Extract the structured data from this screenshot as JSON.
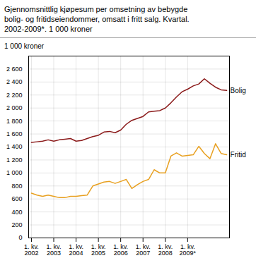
{
  "chart_data": {
    "type": "line",
    "title": "Gjennomsnittlig kjøpesum per omsetning av bebygde\nbolig- og fritidseiendommer, omsatt i fritt salg. Kvartal.\n2002-2009*. 1 000 kroner",
    "y_label": "1 000 kroner",
    "categories": [
      "1. kv.\n2002",
      null,
      null,
      null,
      "1. kv.\n2003",
      null,
      null,
      null,
      "1. kv.\n2004",
      null,
      null,
      null,
      "1. kv.\n2005",
      null,
      null,
      null,
      "1. kv.\n2006",
      null,
      null,
      null,
      "1. kv.\n2007",
      null,
      null,
      null,
      "1. kv.\n2008",
      null,
      null,
      null,
      "1. kv.\n2009*",
      null,
      null,
      null,
      null,
      null,
      null,
      null
    ],
    "series": [
      {
        "name": "Bolig",
        "color": "#8B1A1A",
        "values": [
          1470,
          1480,
          1490,
          1510,
          1490,
          1510,
          1520,
          1530,
          1490,
          1500,
          1530,
          1560,
          1580,
          1630,
          1640,
          1620,
          1660,
          1750,
          1810,
          1840,
          1870,
          1940,
          1950,
          1960,
          2000,
          2080,
          2170,
          2250,
          2290,
          2340,
          2370,
          2450,
          2380,
          2320,
          2280,
          2270
        ]
      },
      {
        "name": "Fritid",
        "color": "#E8A020",
        "values": [
          690,
          660,
          640,
          660,
          640,
          620,
          620,
          640,
          640,
          650,
          660,
          800,
          830,
          860,
          870,
          840,
          870,
          900,
          760,
          820,
          870,
          900,
          1050,
          1000,
          1000,
          1260,
          1310,
          1260,
          1270,
          1280,
          1410,
          1300,
          1220,
          1450,
          1300,
          1280
        ]
      }
    ],
    "ylim": [
      0,
      2800
    ],
    "yticks": [
      0,
      200,
      400,
      600,
      800,
      {
        "value": 1000,
        "label": "1 000"
      },
      {
        "value": 1200,
        "label": "1 200"
      },
      {
        "value": 1400,
        "label": "1 400"
      },
      {
        "value": 1600,
        "label": "1 600"
      },
      {
        "value": 1800,
        "label": "1 800"
      },
      {
        "value": 2000,
        "label": "2 000"
      },
      {
        "value": 2200,
        "label": "2 200"
      },
      {
        "value": 2400,
        "label": "2 400"
      },
      {
        "value": 2600,
        "label": "2 600"
      }
    ],
    "grid": true
  }
}
